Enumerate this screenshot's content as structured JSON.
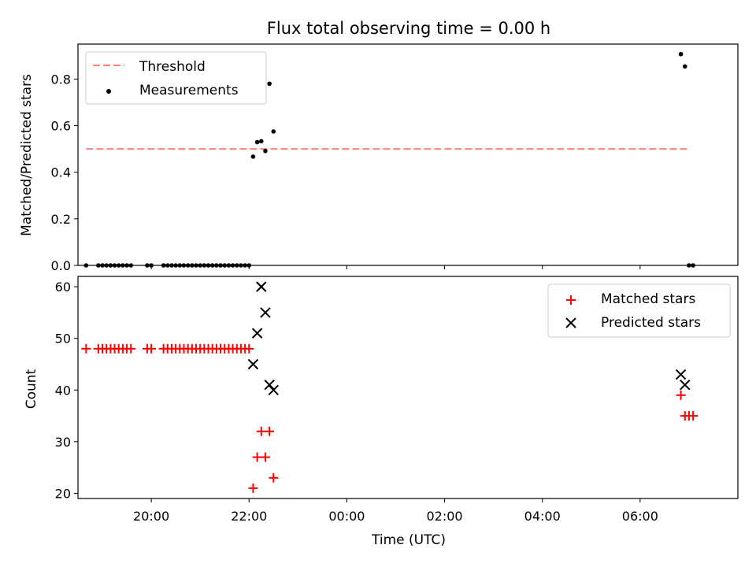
{
  "chart_data": [
    {
      "type": "scatter",
      "title": "Flux total observing time = 0.00 h",
      "ylabel": "Matched/Predicted stars",
      "xlim": [
        "18:30",
        "08:00"
      ],
      "ylim": [
        0,
        0.95
      ],
      "y_ticks": [
        "0.0",
        "0.2",
        "0.4",
        "0.6",
        "0.8"
      ],
      "legend_position": "upper-left",
      "threshold": {
        "name": "Threshold",
        "value": 0.5,
        "x_range": [
          "18:40",
          "07:00"
        ],
        "color": "#ff7f7f",
        "style": "dashed"
      },
      "series": [
        {
          "name": "Measurements",
          "color": "#000000",
          "points": [
            [
              "18:40",
              0.0
            ],
            [
              "18:55",
              0.0
            ],
            [
              "19:00",
              0.0
            ],
            [
              "19:05",
              0.0
            ],
            [
              "19:10",
              0.0
            ],
            [
              "19:15",
              0.0
            ],
            [
              "19:20",
              0.0
            ],
            [
              "19:25",
              0.0
            ],
            [
              "19:30",
              0.0
            ],
            [
              "19:35",
              0.0
            ],
            [
              "19:55",
              0.0
            ],
            [
              "20:00",
              0.0
            ],
            [
              "20:15",
              0.0
            ],
            [
              "20:20",
              0.0
            ],
            [
              "20:25",
              0.0
            ],
            [
              "20:30",
              0.0
            ],
            [
              "20:35",
              0.0
            ],
            [
              "20:40",
              0.0
            ],
            [
              "20:45",
              0.0
            ],
            [
              "20:50",
              0.0
            ],
            [
              "20:55",
              0.0
            ],
            [
              "21:00",
              0.0
            ],
            [
              "21:05",
              0.0
            ],
            [
              "21:10",
              0.0
            ],
            [
              "21:15",
              0.0
            ],
            [
              "21:20",
              0.0
            ],
            [
              "21:25",
              0.0
            ],
            [
              "21:30",
              0.0
            ],
            [
              "21:35",
              0.0
            ],
            [
              "21:40",
              0.0
            ],
            [
              "21:45",
              0.0
            ],
            [
              "21:50",
              0.0
            ],
            [
              "21:55",
              0.0
            ],
            [
              "22:00",
              0.0
            ],
            [
              "22:05",
              0.467
            ],
            [
              "22:10",
              0.529
            ],
            [
              "22:15",
              0.533
            ],
            [
              "22:20",
              0.491
            ],
            [
              "22:25",
              0.78
            ],
            [
              "22:30",
              0.575
            ],
            [
              "06:50",
              0.907
            ],
            [
              "06:55",
              0.854
            ],
            [
              "07:00",
              0.0
            ],
            [
              "07:05",
              0.0
            ]
          ]
        }
      ]
    },
    {
      "type": "scatter",
      "xlabel": "Time (UTC)",
      "ylabel": "Count",
      "xlim": [
        "18:30",
        "08:00"
      ],
      "ylim": [
        19,
        62
      ],
      "x_ticks": [
        "20:00",
        "22:00",
        "00:00",
        "02:00",
        "04:00",
        "06:00"
      ],
      "y_ticks": [
        "20",
        "30",
        "40",
        "50",
        "60"
      ],
      "legend_position": "upper-right",
      "series": [
        {
          "name": "Matched stars",
          "marker": "plus",
          "color": "#ff0000",
          "points": [
            [
              "18:40",
              48
            ],
            [
              "18:55",
              48
            ],
            [
              "19:00",
              48
            ],
            [
              "19:05",
              48
            ],
            [
              "19:10",
              48
            ],
            [
              "19:15",
              48
            ],
            [
              "19:20",
              48
            ],
            [
              "19:25",
              48
            ],
            [
              "19:30",
              48
            ],
            [
              "19:35",
              48
            ],
            [
              "19:55",
              48
            ],
            [
              "20:00",
              48
            ],
            [
              "20:15",
              48
            ],
            [
              "20:20",
              48
            ],
            [
              "20:25",
              48
            ],
            [
              "20:30",
              48
            ],
            [
              "20:35",
              48
            ],
            [
              "20:40",
              48
            ],
            [
              "20:45",
              48
            ],
            [
              "20:50",
              48
            ],
            [
              "20:55",
              48
            ],
            [
              "21:00",
              48
            ],
            [
              "21:05",
              48
            ],
            [
              "21:10",
              48
            ],
            [
              "21:15",
              48
            ],
            [
              "21:20",
              48
            ],
            [
              "21:25",
              48
            ],
            [
              "21:30",
              48
            ],
            [
              "21:35",
              48
            ],
            [
              "21:40",
              48
            ],
            [
              "21:45",
              48
            ],
            [
              "21:50",
              48
            ],
            [
              "21:55",
              48
            ],
            [
              "22:00",
              48
            ],
            [
              "22:05",
              21
            ],
            [
              "22:10",
              27
            ],
            [
              "22:15",
              32
            ],
            [
              "22:20",
              27
            ],
            [
              "22:25",
              32
            ],
            [
              "22:30",
              23
            ],
            [
              "06:50",
              39
            ],
            [
              "06:55",
              35
            ],
            [
              "07:00",
              35
            ],
            [
              "07:05",
              35
            ]
          ]
        },
        {
          "name": "Predicted stars",
          "marker": "x",
          "color": "#000000",
          "points": [
            [
              "22:05",
              45
            ],
            [
              "22:10",
              51
            ],
            [
              "22:15",
              60
            ],
            [
              "22:20",
              55
            ],
            [
              "22:25",
              41
            ],
            [
              "22:30",
              40
            ],
            [
              "06:50",
              43
            ],
            [
              "06:55",
              41
            ]
          ]
        }
      ]
    }
  ]
}
